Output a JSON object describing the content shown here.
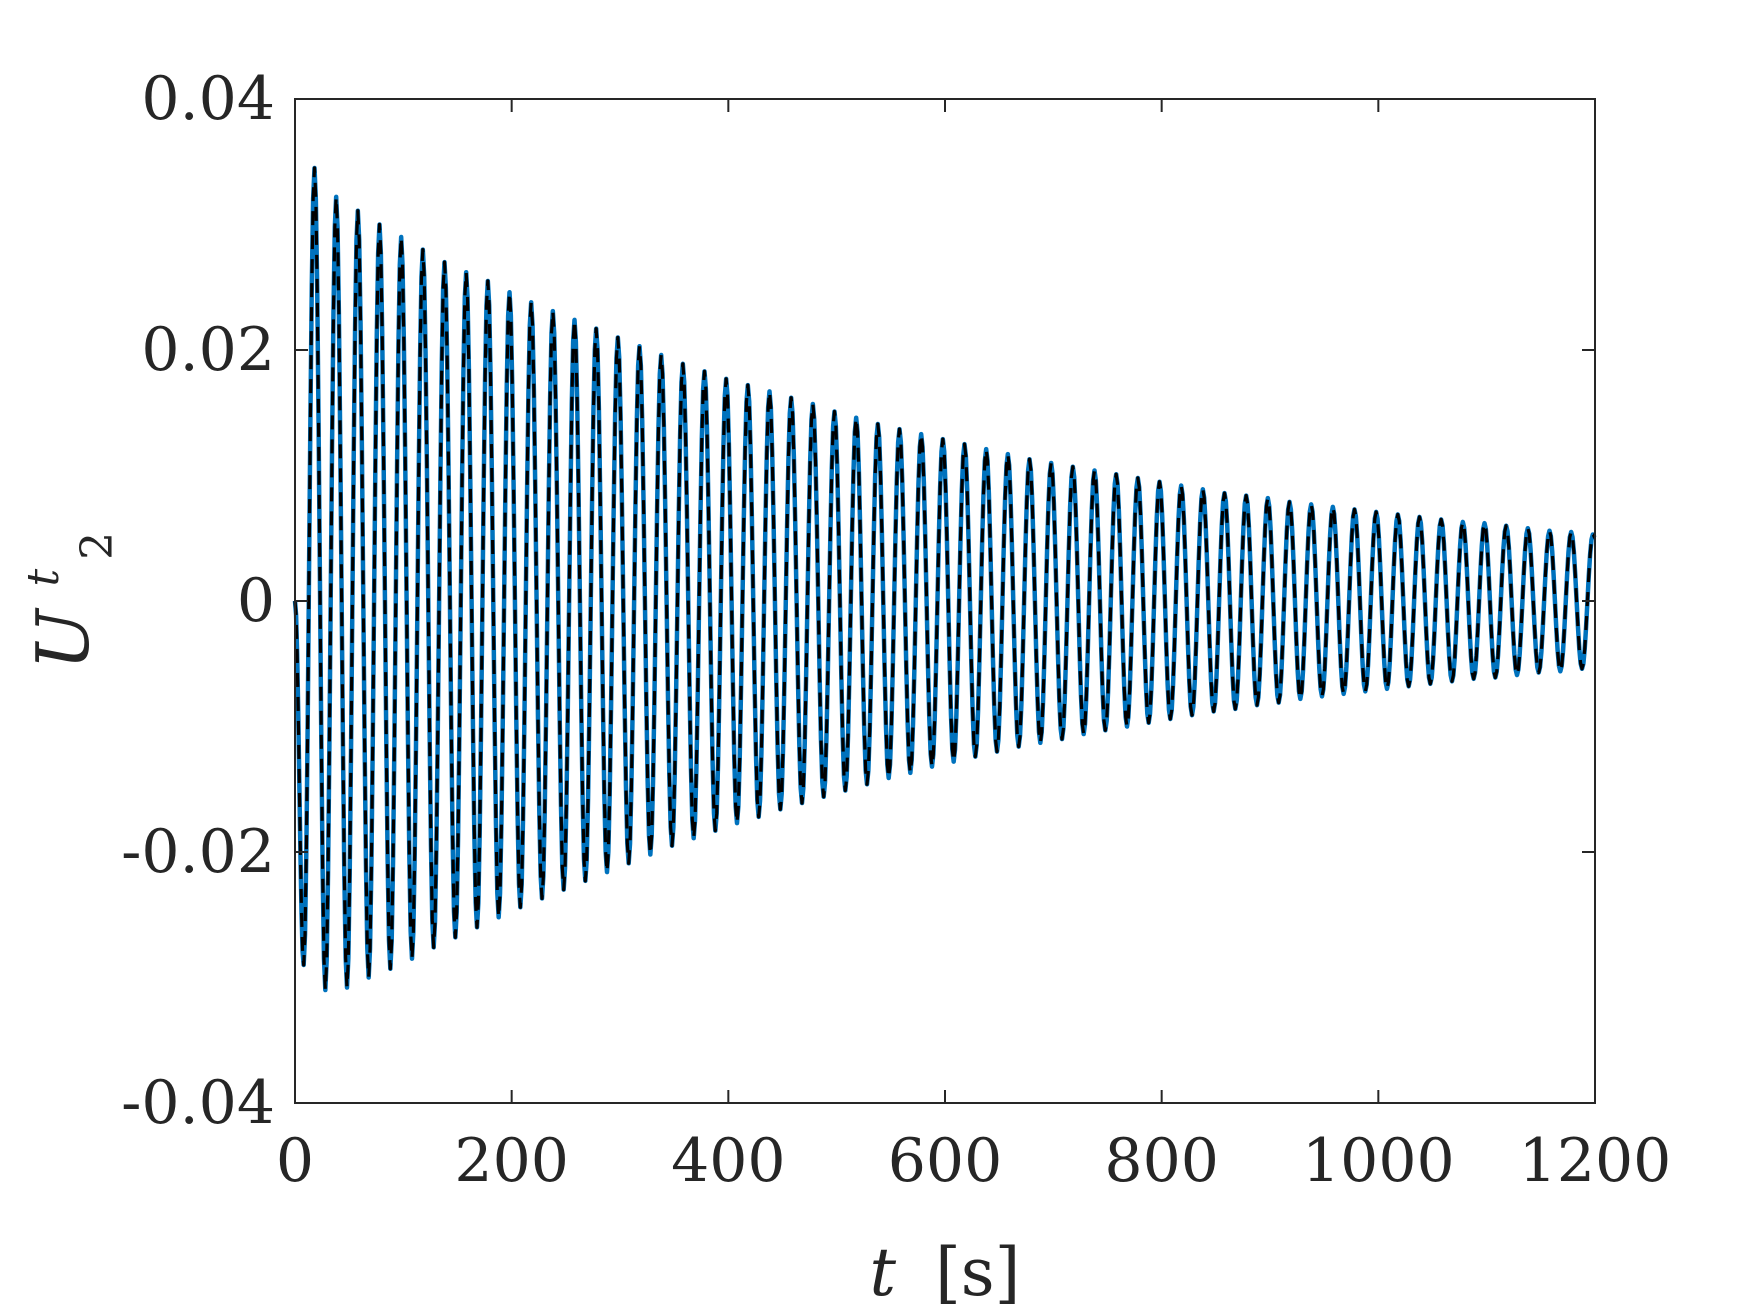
{
  "chart_data": {
    "type": "line",
    "title": "",
    "xlabel": {
      "var": "t",
      "unit": "[s]"
    },
    "ylabel": {
      "base": "U",
      "sup": "t",
      "sub": "2"
    },
    "xlim": [
      0,
      1200
    ],
    "ylim": [
      -0.04,
      0.04
    ],
    "x_ticks": [
      {
        "value": 0,
        "label": "0"
      },
      {
        "value": 200,
        "label": "200"
      },
      {
        "value": 400,
        "label": "400"
      },
      {
        "value": 600,
        "label": "600"
      },
      {
        "value": 800,
        "label": "800"
      },
      {
        "value": 1000,
        "label": "1000"
      },
      {
        "value": 1200,
        "label": "1200"
      }
    ],
    "y_ticks": [
      {
        "value": -0.04,
        "label": "-0.04"
      },
      {
        "value": -0.02,
        "label": "-0.02"
      },
      {
        "value": 0,
        "label": "0"
      },
      {
        "value": 0.02,
        "label": "0.02"
      },
      {
        "value": 0.04,
        "label": "0.04"
      }
    ],
    "grid": false,
    "legend": "none",
    "series": [
      {
        "style": "solid",
        "color": "#0072BD",
        "oscillation_period_s": 20,
        "peaks": [
          {
            "x": 18,
            "y": 0.0345
          },
          {
            "x": 38,
            "y": 0.0322
          },
          {
            "x": 58,
            "y": 0.0311
          },
          {
            "x": 78,
            "y": 0.03
          },
          {
            "x": 98,
            "y": 0.029
          },
          {
            "x": 118,
            "y": 0.028
          },
          {
            "x": 138,
            "y": 0.027
          },
          {
            "x": 158,
            "y": 0.0262
          },
          {
            "x": 178,
            "y": 0.0255
          },
          {
            "x": 198,
            "y": 0.0246
          },
          {
            "x": 218,
            "y": 0.0238
          },
          {
            "x": 238,
            "y": 0.0231
          },
          {
            "x": 258,
            "y": 0.0224
          },
          {
            "x": 278,
            "y": 0.0217
          },
          {
            "x": 298,
            "y": 0.021
          },
          {
            "x": 318,
            "y": 0.0203
          },
          {
            "x": 338,
            "y": 0.0196
          },
          {
            "x": 358,
            "y": 0.0189
          },
          {
            "x": 378,
            "y": 0.0183
          },
          {
            "x": 398,
            "y": 0.0177
          },
          {
            "x": 418,
            "y": 0.0172
          },
          {
            "x": 438,
            "y": 0.0167
          },
          {
            "x": 458,
            "y": 0.0162
          },
          {
            "x": 478,
            "y": 0.0157
          },
          {
            "x": 498,
            "y": 0.0151
          },
          {
            "x": 518,
            "y": 0.0146
          },
          {
            "x": 538,
            "y": 0.0141
          },
          {
            "x": 558,
            "y": 0.0137
          },
          {
            "x": 578,
            "y": 0.0133
          },
          {
            "x": 598,
            "y": 0.0129
          },
          {
            "x": 618,
            "y": 0.0125
          },
          {
            "x": 638,
            "y": 0.0121
          },
          {
            "x": 658,
            "y": 0.0117
          },
          {
            "x": 678,
            "y": 0.0113
          },
          {
            "x": 698,
            "y": 0.011
          },
          {
            "x": 718,
            "y": 0.0107
          },
          {
            "x": 738,
            "y": 0.0104
          },
          {
            "x": 758,
            "y": 0.0101
          },
          {
            "x": 778,
            "y": 0.0098
          },
          {
            "x": 798,
            "y": 0.0095
          },
          {
            "x": 818,
            "y": 0.0092
          },
          {
            "x": 838,
            "y": 0.0089
          },
          {
            "x": 858,
            "y": 0.0086
          },
          {
            "x": 878,
            "y": 0.0084
          },
          {
            "x": 898,
            "y": 0.0082
          },
          {
            "x": 918,
            "y": 0.0079
          },
          {
            "x": 938,
            "y": 0.0077
          },
          {
            "x": 958,
            "y": 0.0075
          },
          {
            "x": 978,
            "y": 0.0073
          },
          {
            "x": 998,
            "y": 0.0071
          },
          {
            "x": 1018,
            "y": 0.0069
          },
          {
            "x": 1038,
            "y": 0.0067
          },
          {
            "x": 1058,
            "y": 0.0065
          },
          {
            "x": 1078,
            "y": 0.0063
          },
          {
            "x": 1098,
            "y": 0.0062
          },
          {
            "x": 1118,
            "y": 0.006
          },
          {
            "x": 1138,
            "y": 0.0058
          },
          {
            "x": 1158,
            "y": 0.0056
          },
          {
            "x": 1178,
            "y": 0.0055
          },
          {
            "x": 1198,
            "y": 0.0053
          }
        ],
        "troughs": [
          {
            "x": 8,
            "y": -0.029
          },
          {
            "x": 28,
            "y": -0.031
          },
          {
            "x": 48,
            "y": -0.0308
          },
          {
            "x": 68,
            "y": -0.03
          },
          {
            "x": 88,
            "y": -0.0293
          },
          {
            "x": 108,
            "y": -0.0285
          },
          {
            "x": 128,
            "y": -0.0276
          },
          {
            "x": 148,
            "y": -0.0268
          },
          {
            "x": 168,
            "y": -0.026
          },
          {
            "x": 188,
            "y": -0.0252
          },
          {
            "x": 208,
            "y": -0.0244
          },
          {
            "x": 228,
            "y": -0.0237
          },
          {
            "x": 248,
            "y": -0.023
          },
          {
            "x": 268,
            "y": -0.0223
          },
          {
            "x": 288,
            "y": -0.0216
          },
          {
            "x": 308,
            "y": -0.0209
          },
          {
            "x": 328,
            "y": -0.0202
          },
          {
            "x": 348,
            "y": -0.0195
          },
          {
            "x": 368,
            "y": -0.0189
          },
          {
            "x": 388,
            "y": -0.0183
          },
          {
            "x": 408,
            "y": -0.0177
          },
          {
            "x": 428,
            "y": -0.0172
          },
          {
            "x": 448,
            "y": -0.0166
          },
          {
            "x": 468,
            "y": -0.0161
          },
          {
            "x": 488,
            "y": -0.0156
          },
          {
            "x": 508,
            "y": -0.0151
          },
          {
            "x": 528,
            "y": -0.0146
          },
          {
            "x": 548,
            "y": -0.0141
          },
          {
            "x": 568,
            "y": -0.0137
          },
          {
            "x": 588,
            "y": -0.0132
          },
          {
            "x": 608,
            "y": -0.0128
          },
          {
            "x": 628,
            "y": -0.0124
          },
          {
            "x": 648,
            "y": -0.012
          },
          {
            "x": 668,
            "y": -0.0116
          },
          {
            "x": 688,
            "y": -0.0113
          },
          {
            "x": 708,
            "y": -0.011
          },
          {
            "x": 728,
            "y": -0.0106
          },
          {
            "x": 748,
            "y": -0.0103
          },
          {
            "x": 768,
            "y": -0.01
          },
          {
            "x": 788,
            "y": -0.0097
          },
          {
            "x": 808,
            "y": -0.0094
          },
          {
            "x": 828,
            "y": -0.0091
          },
          {
            "x": 848,
            "y": -0.0088
          },
          {
            "x": 868,
            "y": -0.0086
          },
          {
            "x": 888,
            "y": -0.0083
          },
          {
            "x": 908,
            "y": -0.0081
          },
          {
            "x": 928,
            "y": -0.0078
          },
          {
            "x": 948,
            "y": -0.0076
          },
          {
            "x": 968,
            "y": -0.0074
          },
          {
            "x": 988,
            "y": -0.0072
          },
          {
            "x": 1008,
            "y": -0.007
          },
          {
            "x": 1028,
            "y": -0.0068
          },
          {
            "x": 1048,
            "y": -0.0066
          },
          {
            "x": 1068,
            "y": -0.0064
          },
          {
            "x": 1088,
            "y": -0.0062
          },
          {
            "x": 1108,
            "y": -0.0061
          },
          {
            "x": 1128,
            "y": -0.0059
          },
          {
            "x": 1148,
            "y": -0.0057
          },
          {
            "x": 1168,
            "y": -0.0056
          },
          {
            "x": 1188,
            "y": -0.0054
          }
        ]
      },
      {
        "style": "dashed",
        "color": "#000000",
        "oscillation_period_s": 20,
        "same_as_series": 0
      }
    ]
  }
}
